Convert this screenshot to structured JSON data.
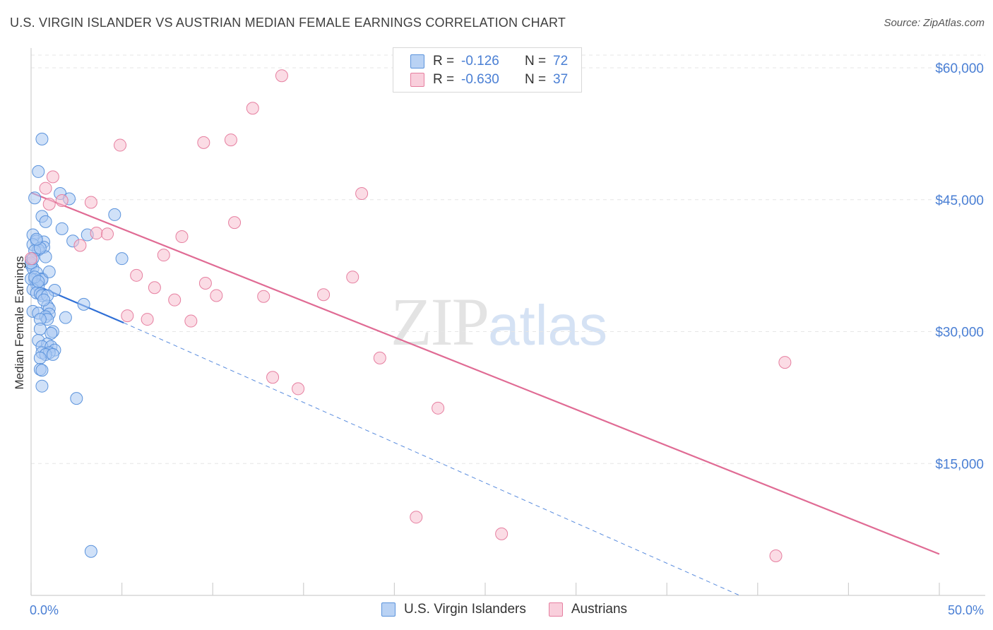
{
  "header": {
    "title": "U.S. VIRGIN ISLANDER VS AUSTRIAN MEDIAN FEMALE EARNINGS CORRELATION CHART",
    "source": "Source: ZipAtlas.com"
  },
  "watermark": {
    "zip": "ZIP",
    "atlas": "atlas"
  },
  "legend": {
    "rows": [
      {
        "r_label": "R =",
        "r_value": "-0.126",
        "n_label": "N =",
        "n_value": "72"
      },
      {
        "r_label": "R =",
        "r_value": "-0.630",
        "n_label": "N =",
        "n_value": "37"
      }
    ]
  },
  "bottom_legend": {
    "series1": "U.S. Virgin Islanders",
    "series2": "Austrians"
  },
  "colors": {
    "blue_fill": "#a9c8f2",
    "blue_stroke": "#5b93dc",
    "blue_line": "#2f6fd6",
    "pink_fill": "#f7bfd0",
    "pink_stroke": "#e67fa0",
    "pink_line": "#e06b94",
    "tick_text": "#4a7fd4",
    "grid": "#e6e6e6"
  },
  "chart_data": {
    "type": "scatter",
    "title": "U.S. VIRGIN ISLANDER VS AUSTRIAN MEDIAN FEMALE EARNINGS CORRELATION CHART",
    "xlabel": "",
    "ylabel": "Median Female Earnings",
    "xlim": [
      0,
      50
    ],
    "ylim": [
      0,
      62000
    ],
    "x_tick_labels": [
      "0.0%",
      "50.0%"
    ],
    "y_ticks": [
      15000,
      30000,
      45000,
      60000
    ],
    "y_tick_labels": [
      "$15,000",
      "$30,000",
      "$45,000",
      "$60,000"
    ],
    "grid": true,
    "legend_position": "top-center",
    "series": [
      {
        "name": "U.S. Virgin Islanders",
        "r": -0.126,
        "n": 72,
        "points": [
          [
            0.6,
            51900
          ],
          [
            0.4,
            48200
          ],
          [
            0.2,
            45200
          ],
          [
            1.6,
            45700
          ],
          [
            2.1,
            45100
          ],
          [
            4.6,
            43300
          ],
          [
            0.6,
            43100
          ],
          [
            0.8,
            42500
          ],
          [
            1.7,
            41700
          ],
          [
            3.1,
            41000
          ],
          [
            0.1,
            41000
          ],
          [
            2.3,
            40300
          ],
          [
            0.3,
            40300
          ],
          [
            0.7,
            40200
          ],
          [
            0.1,
            39900
          ],
          [
            0.7,
            39600
          ],
          [
            0.4,
            39300
          ],
          [
            0.2,
            39200
          ],
          [
            0.8,
            38500
          ],
          [
            5.0,
            38300
          ],
          [
            0.0,
            38100
          ],
          [
            0.0,
            37600
          ],
          [
            0.1,
            37200
          ],
          [
            0.3,
            36700
          ],
          [
            0.6,
            36000
          ],
          [
            0.2,
            35900
          ],
          [
            0.6,
            35900
          ],
          [
            0.3,
            35400
          ],
          [
            0.4,
            35200
          ],
          [
            0.1,
            34800
          ],
          [
            1.3,
            34700
          ],
          [
            0.3,
            34400
          ],
          [
            0.5,
            34300
          ],
          [
            0.6,
            34100
          ],
          [
            0.9,
            34100
          ],
          [
            2.9,
            33100
          ],
          [
            0.9,
            32900
          ],
          [
            1.0,
            32600
          ],
          [
            0.1,
            32300
          ],
          [
            0.4,
            32100
          ],
          [
            1.0,
            32000
          ],
          [
            0.8,
            31700
          ],
          [
            1.9,
            31600
          ],
          [
            0.9,
            31400
          ],
          [
            0.5,
            31400
          ],
          [
            0.5,
            30300
          ],
          [
            1.2,
            30000
          ],
          [
            1.1,
            29800
          ],
          [
            0.4,
            29000
          ],
          [
            0.9,
            28600
          ],
          [
            0.6,
            28300
          ],
          [
            1.1,
            28300
          ],
          [
            1.3,
            27900
          ],
          [
            0.6,
            27600
          ],
          [
            1.0,
            27600
          ],
          [
            0.8,
            27400
          ],
          [
            1.2,
            27400
          ],
          [
            0.5,
            27000
          ],
          [
            0.5,
            25700
          ],
          [
            0.6,
            25600
          ],
          [
            0.6,
            23800
          ],
          [
            2.5,
            22400
          ],
          [
            3.3,
            5000
          ],
          [
            0.0,
            36000
          ],
          [
            0.2,
            36200
          ],
          [
            0.0,
            37800
          ],
          [
            0.1,
            38300
          ],
          [
            0.5,
            39500
          ],
          [
            0.3,
            40500
          ],
          [
            0.4,
            35700
          ],
          [
            0.7,
            33600
          ],
          [
            1.0,
            36800
          ]
        ],
        "trend_solid": [
          [
            0.0,
            35500
          ],
          [
            5.1,
            31000
          ]
        ],
        "trend_dashed": [
          [
            5.1,
            31000
          ],
          [
            39.0,
            0
          ]
        ]
      },
      {
        "name": "Austrians",
        "r": -0.63,
        "n": 37,
        "points": [
          [
            13.8,
            59100
          ],
          [
            12.2,
            55400
          ],
          [
            4.9,
            51200
          ],
          [
            11.0,
            51800
          ],
          [
            9.5,
            51500
          ],
          [
            1.2,
            47600
          ],
          [
            0.8,
            46300
          ],
          [
            18.2,
            45700
          ],
          [
            1.7,
            44900
          ],
          [
            3.3,
            44700
          ],
          [
            11.2,
            42400
          ],
          [
            3.6,
            41200
          ],
          [
            4.2,
            41100
          ],
          [
            8.3,
            40800
          ],
          [
            2.7,
            39800
          ],
          [
            7.3,
            38700
          ],
          [
            0.0,
            38300
          ],
          [
            5.8,
            36400
          ],
          [
            17.7,
            36200
          ],
          [
            9.6,
            35500
          ],
          [
            6.8,
            35000
          ],
          [
            10.2,
            34100
          ],
          [
            16.1,
            34200
          ],
          [
            12.8,
            34000
          ],
          [
            7.9,
            33600
          ],
          [
            5.3,
            31800
          ],
          [
            6.4,
            31400
          ],
          [
            8.8,
            31200
          ],
          [
            19.2,
            27000
          ],
          [
            41.5,
            26500
          ],
          [
            13.3,
            24800
          ],
          [
            14.7,
            23500
          ],
          [
            22.4,
            21300
          ],
          [
            21.2,
            8900
          ],
          [
            25.9,
            7000
          ],
          [
            41.0,
            4500
          ],
          [
            1.0,
            44500
          ]
        ],
        "trend_solid": [
          [
            0.0,
            45800
          ],
          [
            50.0,
            4700
          ]
        ]
      }
    ]
  }
}
